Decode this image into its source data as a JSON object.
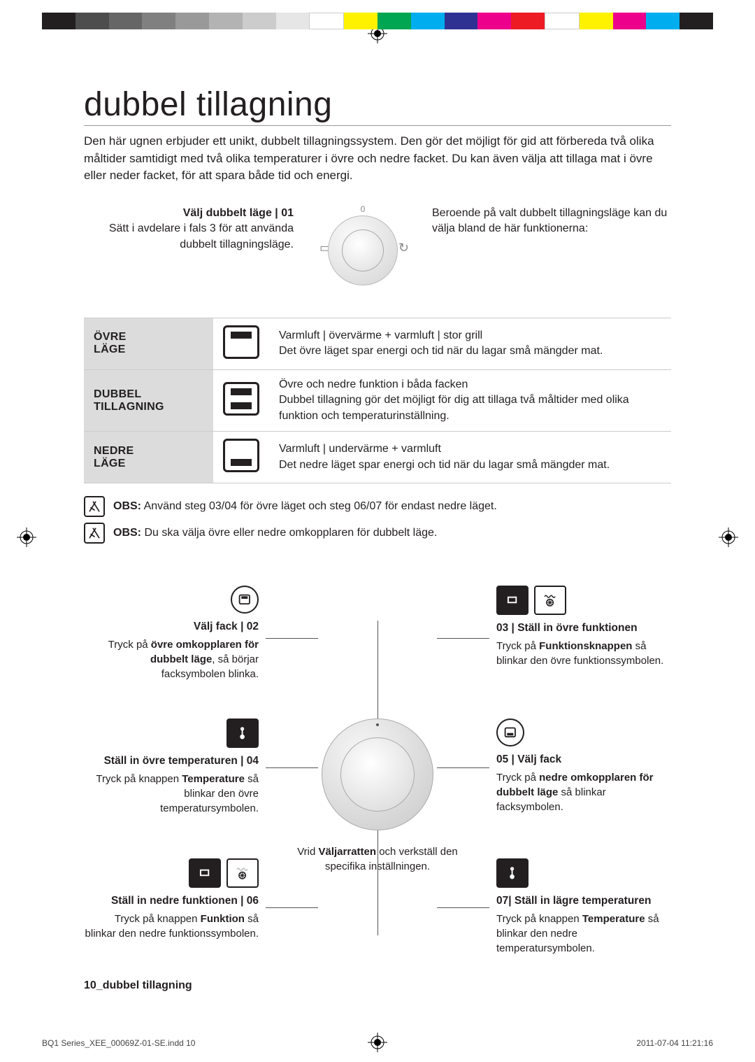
{
  "colorbar": [
    "#231f20",
    "#4d4d4d",
    "#666666",
    "#808080",
    "#999999",
    "#b3b3b3",
    "#cccccc",
    "#e6e6e6",
    "#ffffff",
    "#fff200",
    "#00a651",
    "#00aeef",
    "#2e3192",
    "#ec008c",
    "#ed1c24",
    "#ffffff",
    "#fff200",
    "#ec008c",
    "#00aeef",
    "#231f20"
  ],
  "title": "dubbel tillagning",
  "intro": "Den här ugnen erbjuder ett unikt, dubbelt tillagningssystem. Den gör det möjligt för gid att förbereda två olika måltider samtidigt med två olika temperaturer i övre och nedre facket. Du kan även välja att tillaga mat i övre eller neder facket, för att spara både tid och energi.",
  "dialrow": {
    "left_heading": "Välj dubbelt läge | 01",
    "left_body": "Sätt i avdelare i fals 3 för att använda dubbelt tillagningsläge.",
    "top_glyph": "0",
    "right_body": "Beroende på valt dubbelt tillagningsläge kan du välja bland de här funktionerna:"
  },
  "modes": [
    {
      "label": "ÖVRE LÄGE",
      "iconClass": "upper",
      "desc": "Varmluft | övervärme + varmluft | stor grill\nDet övre läget spar energi och tid när du lagar små mängder mat."
    },
    {
      "label": "DUBBEL TILLAGNING",
      "iconClass": "dubbel",
      "desc": "Övre och nedre funktion i båda facken\nDubbel tillagning gör det möjligt för dig att tillaga två måltider med olika funktion och temperaturinställning."
    },
    {
      "label": "NEDRE LÄGE",
      "iconClass": "lower",
      "desc": "Varmluft | undervärme + varmluft\nDet nedre läget spar energi och tid när du lagar små mängder mat."
    }
  ],
  "obs": [
    {
      "label": "OBS:",
      "text": "Använd steg 03/04 för övre läget och steg 06/07 för endast nedre läget."
    },
    {
      "label": "OBS:",
      "text": "Du ska välja övre eller nedre omkopplaren för dubbelt läge."
    }
  ],
  "center_caption_pre": "Vrid ",
  "center_caption_bold": "Väljarratten",
  "center_caption_post": " och verkställ den specifika inställningen.",
  "steps": {
    "s02": {
      "heading": "Välj fack | 02",
      "l1": "Tryck på ",
      "b1": "övre omkopplaren för dubbelt läge",
      "l2": ", så börjar facksymbolen blinka."
    },
    "s03": {
      "heading": "03 | Ställ in övre funktionen",
      "l1": "Tryck på ",
      "b1": "Funktionsknappen",
      "l2": " så blinkar den övre funktionssymbolen."
    },
    "s04": {
      "heading": "Ställ in övre temperaturen | 04",
      "l1": "Tryck på knappen ",
      "b1": "Temperature",
      "l2": " så blinkar den övre temperatursymbolen."
    },
    "s05": {
      "heading": "05 | Välj fack",
      "l1": "Tryck på ",
      "b1": "nedre omkopplaren för dubbelt läge",
      "l2": " så blinkar facksymbolen."
    },
    "s06": {
      "heading": "Ställ in nedre funktionen | 06",
      "l1": "Tryck på knappen ",
      "b1": "Funktion",
      "l2": " så blinkar den nedre funktionssymbolen."
    },
    "s07": {
      "heading": "07| Ställ in lägre temperaturen",
      "l1": "Tryck på knappen ",
      "b1": "Temperature",
      "l2": " så blinkar den nedre temperatursymbolen."
    }
  },
  "footer_label": "10_dubbel tillagning",
  "print_footer_left": "BQ1 Series_XEE_00069Z-01-SE.indd   10",
  "print_footer_right": "2011-07-04   11:21:16"
}
